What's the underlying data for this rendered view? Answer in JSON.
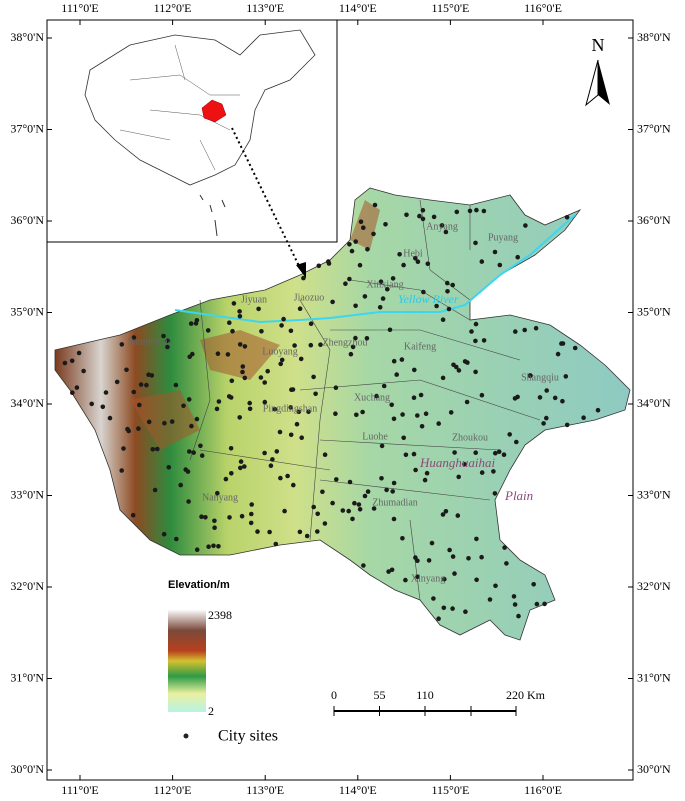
{
  "map": {
    "lon_ticks": [
      {
        "value": 111,
        "label": "111°0'E"
      },
      {
        "value": 112,
        "label": "112°0'E"
      },
      {
        "value": 113,
        "label": "113°0'E"
      },
      {
        "value": 114,
        "label": "114°0'E"
      },
      {
        "value": 115,
        "label": "115°0'E"
      },
      {
        "value": 116,
        "label": "116°0'E"
      }
    ],
    "lat_ticks": [
      {
        "value": 38,
        "label": "38°0'N"
      },
      {
        "value": 37,
        "label": "37°0'N"
      },
      {
        "value": 36,
        "label": "36°0'N"
      },
      {
        "value": 35,
        "label": "35°0'N"
      },
      {
        "value": 34,
        "label": "34°0'N"
      },
      {
        "value": 33,
        "label": "33°0'N"
      },
      {
        "value": 32,
        "label": "32°0'N"
      },
      {
        "value": 31,
        "label": "31°0'N"
      },
      {
        "value": 30,
        "label": "30°0'N"
      }
    ],
    "north": "N",
    "cities": [
      "Anyang",
      "Puyang",
      "Hebi",
      "Xinxiang",
      "Jiaozuo",
      "Jiyuan",
      "Zhengzhou",
      "Kaifeng",
      "Shangqiu",
      "Sanmenxia",
      "Luoyang",
      "Pingdingshan",
      "Xuchang",
      "Luohe",
      "Zhoukou",
      "Zhumadian",
      "Nanyang",
      "Xinyang"
    ],
    "river": "Yellow River",
    "plain": [
      "Huanghuaihai",
      "Plain"
    ],
    "legend": {
      "title": "Elevation/m",
      "max": 2398,
      "min": 2,
      "points": "City sites"
    },
    "scale_bar": {
      "ticks": [
        {
          "value": 0,
          "label": "0"
        },
        {
          "value": 55,
          "label": "55"
        },
        {
          "value": 110,
          "label": "110"
        },
        {
          "value": 220,
          "label": "220 Km"
        }
      ]
    }
  }
}
